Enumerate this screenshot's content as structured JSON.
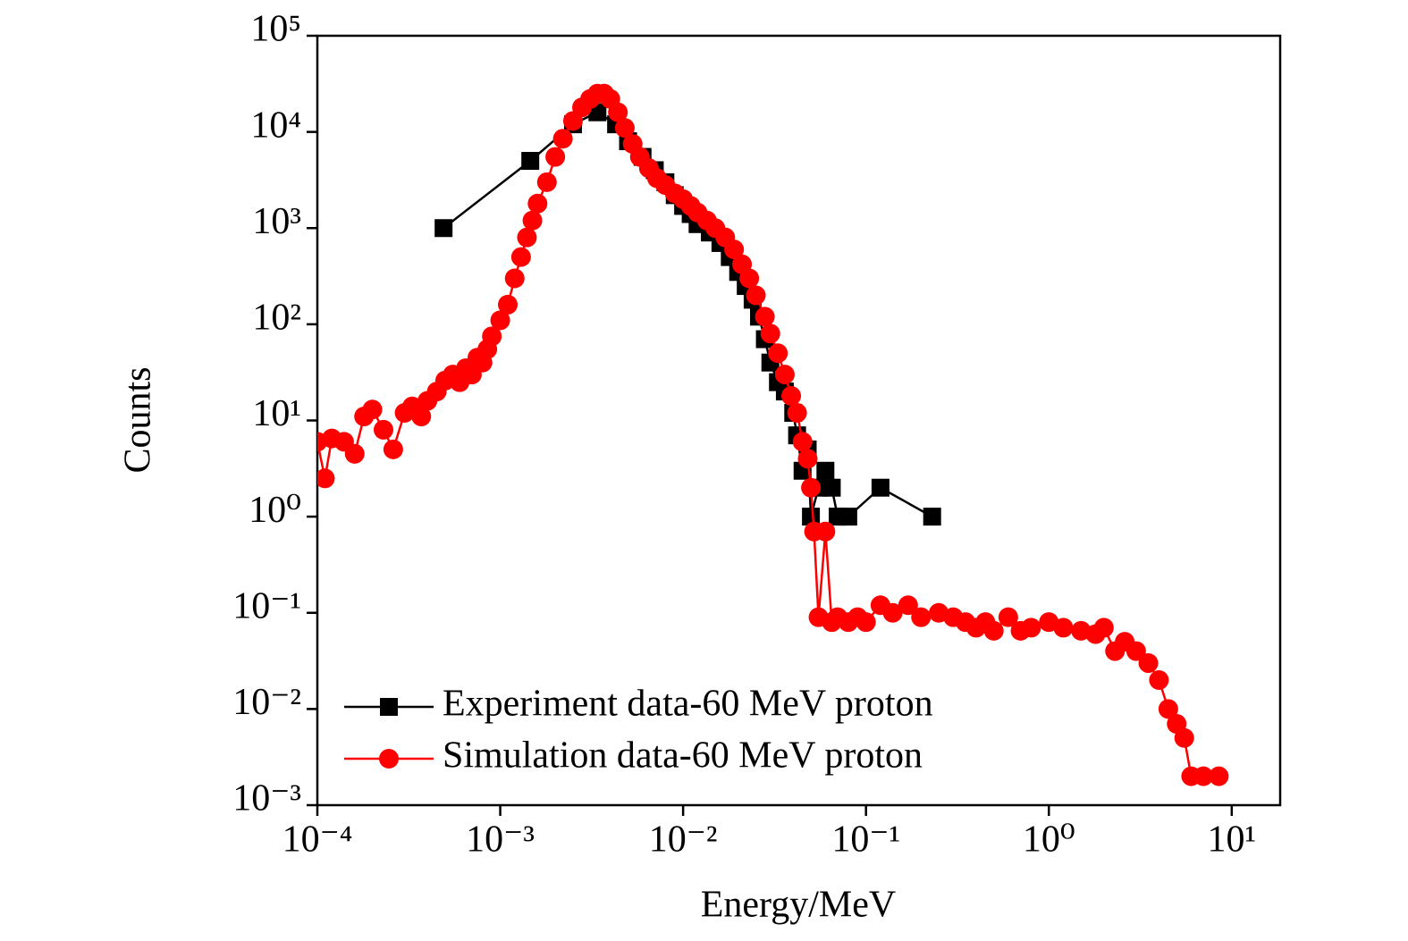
{
  "chart_data": {
    "type": "line",
    "xlabel": "Energy/MeV",
    "ylabel": "Counts",
    "xscale": "log",
    "yscale": "log",
    "xlim": [
      0.0001,
      18.4
    ],
    "ylim": [
      0.001,
      100000
    ],
    "xticks": [
      {
        "value": 0.0001,
        "label": "10⁻⁴"
      },
      {
        "value": 0.001,
        "label": "10⁻³"
      },
      {
        "value": 0.01,
        "label": "10⁻²"
      },
      {
        "value": 0.1,
        "label": "10⁻¹"
      },
      {
        "value": 1,
        "label": "10⁰"
      },
      {
        "value": 10,
        "label": "10¹"
      }
    ],
    "yticks": [
      {
        "value": 0.001,
        "label": "10⁻³"
      },
      {
        "value": 0.01,
        "label": "10⁻²"
      },
      {
        "value": 0.1,
        "label": "10⁻¹"
      },
      {
        "value": 1,
        "label": "10⁰"
      },
      {
        "value": 10,
        "label": "10¹"
      },
      {
        "value": 100,
        "label": "10²"
      },
      {
        "value": 1000,
        "label": "10³"
      },
      {
        "value": 10000,
        "label": "10⁴"
      },
      {
        "value": 100000,
        "label": "10⁵"
      }
    ],
    "legend": "lower left",
    "series": [
      {
        "name": "Experiment data-60 MeV proton",
        "color": "#000000",
        "marker": "square",
        "x": [
          0.00049,
          0.00146,
          0.0025,
          0.0034,
          0.0043,
          0.005,
          0.006,
          0.007,
          0.008,
          0.009,
          0.01,
          0.011,
          0.012,
          0.014,
          0.016,
          0.018,
          0.02,
          0.022,
          0.024,
          0.026,
          0.028,
          0.03,
          0.033,
          0.036,
          0.04,
          0.042,
          0.045,
          0.048,
          0.05,
          0.055,
          0.06,
          0.065,
          0.07,
          0.08,
          0.12,
          0.23
        ],
        "values": [
          1000,
          5000,
          12000,
          16000,
          12000,
          8000,
          5500,
          4000,
          3000,
          2200,
          1700,
          1400,
          1100,
          900,
          700,
          500,
          350,
          250,
          180,
          120,
          70,
          40,
          25,
          20,
          12,
          7,
          3,
          5,
          1,
          2,
          3,
          2,
          1,
          1,
          2,
          1
        ]
      },
      {
        "name": "Simulation data-60 MeV proton",
        "color": "#ff0000",
        "marker": "circle",
        "x": [
          0.0001,
          0.00011,
          0.00012,
          0.00014,
          0.00016,
          0.00018,
          0.0002,
          0.00023,
          0.00026,
          0.0003,
          0.00033,
          0.00037,
          0.0004,
          0.00045,
          0.0005,
          0.00055,
          0.0006,
          0.00065,
          0.0007,
          0.00075,
          0.0008,
          0.00085,
          0.0009,
          0.001,
          0.0011,
          0.0012,
          0.0013,
          0.0014,
          0.0015,
          0.0016,
          0.0018,
          0.002,
          0.0022,
          0.0025,
          0.0028,
          0.0031,
          0.0034,
          0.0037,
          0.004,
          0.0044,
          0.0048,
          0.0053,
          0.0058,
          0.0065,
          0.0072,
          0.008,
          0.009,
          0.01,
          0.011,
          0.012,
          0.0135,
          0.015,
          0.017,
          0.019,
          0.021,
          0.023,
          0.025,
          0.028,
          0.03,
          0.033,
          0.036,
          0.039,
          0.042,
          0.045,
          0.048,
          0.05,
          0.052,
          0.055,
          0.06,
          0.065,
          0.07,
          0.08,
          0.09,
          0.1,
          0.12,
          0.14,
          0.17,
          0.2,
          0.25,
          0.3,
          0.35,
          0.4,
          0.45,
          0.5,
          0.6,
          0.7,
          0.8,
          1.0,
          1.2,
          1.5,
          1.8,
          2.0,
          2.3,
          2.6,
          3.0,
          3.5,
          4.0,
          4.5,
          5.0,
          5.5,
          6.0,
          7.0,
          8.5
        ],
        "values": [
          6,
          2.5,
          6.5,
          6,
          4.5,
          11,
          13,
          8,
          5,
          12,
          14,
          11,
          16,
          20,
          26,
          30,
          25,
          35,
          30,
          45,
          40,
          55,
          75,
          110,
          160,
          300,
          500,
          800,
          1200,
          1800,
          3000,
          5500,
          8500,
          13000,
          18000,
          22000,
          25000,
          25000,
          22000,
          16000,
          11000,
          7500,
          5500,
          4200,
          3300,
          2800,
          2300,
          2000,
          1700,
          1450,
          1200,
          1000,
          800,
          600,
          420,
          300,
          200,
          120,
          80,
          50,
          30,
          18,
          12,
          6,
          4,
          2,
          0.7,
          0.09,
          0.7,
          0.08,
          0.09,
          0.08,
          0.09,
          0.08,
          0.12,
          0.1,
          0.12,
          0.09,
          0.1,
          0.09,
          0.08,
          0.07,
          0.08,
          0.065,
          0.09,
          0.065,
          0.07,
          0.08,
          0.07,
          0.065,
          0.06,
          0.07,
          0.04,
          0.05,
          0.04,
          0.03,
          0.02,
          0.01,
          0.007,
          0.005,
          0.002,
          0.002,
          0.002
        ]
      }
    ]
  }
}
